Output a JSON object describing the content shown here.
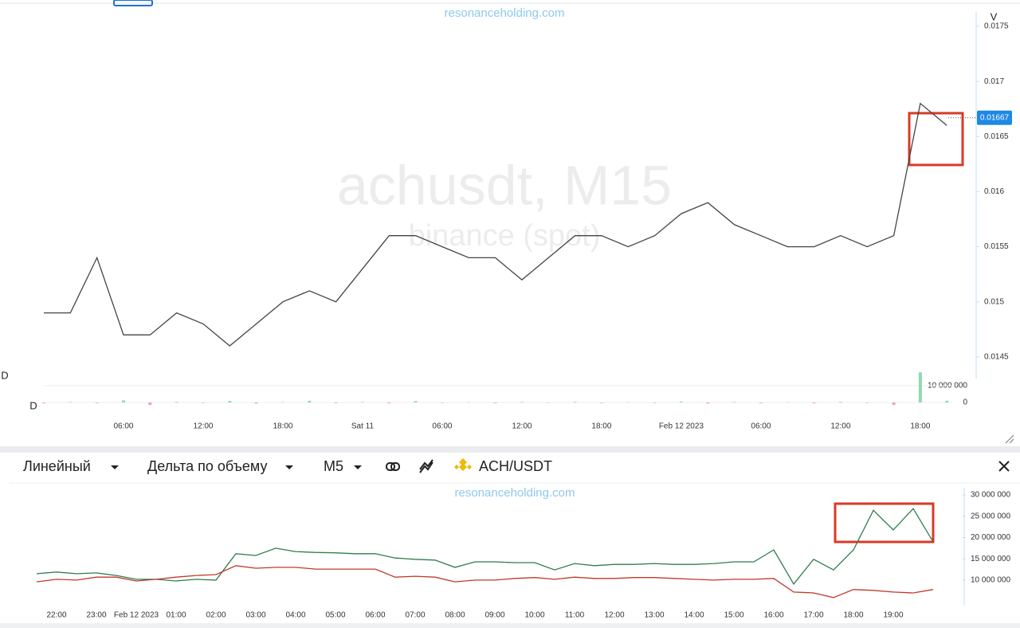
{
  "watermark": "resonanceholding.com",
  "labels": {
    "volume": "V",
    "delta": "D"
  },
  "toolbar": {
    "chart_style": "Линейный",
    "indicator": "Дельта по объему",
    "timeframe": "M5",
    "symbol": "ACH/USDT"
  },
  "chart_data": [
    {
      "type": "line",
      "title": "achusdt, M15",
      "subtitle": "binance (spot)",
      "color": "#444444",
      "categories": [
        null,
        null,
        null,
        "06:00",
        null,
        null,
        "12:00",
        null,
        null,
        "18:00",
        null,
        null,
        "Sat 11",
        null,
        null,
        "06:00",
        null,
        null,
        "12:00",
        null,
        null,
        "18:00",
        null,
        null,
        "Feb 12 2023",
        null,
        null,
        "06:00",
        null,
        null,
        "12:00",
        null,
        null,
        "18:00",
        null
      ],
      "values": [
        0.0149,
        0.0149,
        0.0154,
        0.0147,
        0.0147,
        0.0149,
        0.0148,
        0.0146,
        0.0148,
        0.015,
        0.0151,
        0.015,
        0.0153,
        0.0156,
        0.0156,
        0.0155,
        0.0154,
        0.0154,
        0.0152,
        0.0154,
        0.0156,
        0.0156,
        0.0155,
        0.0156,
        0.0158,
        0.0159,
        0.0157,
        0.0156,
        0.0155,
        0.0155,
        0.0156,
        0.0155,
        0.0156,
        0.0168,
        0.0166
      ],
      "ylim": [
        0.01434,
        0.01763
      ],
      "yticks": [
        0.0145,
        0.015,
        0.0155,
        0.016,
        0.0165,
        0.017,
        0.0175
      ],
      "last_price": 0.01667,
      "last_price_color": "#1e88e5"
    },
    {
      "type": "bar",
      "positive_color": "#8fd9b0",
      "negative_color": "#f4a4a8",
      "values": [
        -500000,
        300000,
        -400000,
        1200000,
        -1500000,
        400000,
        -300000,
        900000,
        -600000,
        200000,
        1000000,
        -400000,
        300000,
        -500000,
        800000,
        -300000,
        200000,
        -400000,
        300000,
        -200000,
        400000,
        -300000,
        200000,
        -300000,
        500000,
        -600000,
        300000,
        -400000,
        200000,
        -500000,
        400000,
        -300000,
        -1500000,
        18000000,
        1000000
      ],
      "ylim": [
        -6200000,
        20500000
      ],
      "yticks": [
        0,
        {
          "value": 10000000,
          "label": "10 000 000"
        }
      ]
    },
    {
      "type": "line",
      "categories": [
        null,
        "22:00",
        null,
        "23:00",
        null,
        "Feb 12 2023",
        null,
        "01:00",
        null,
        "02:00",
        null,
        "03:00",
        null,
        "04:00",
        null,
        "05:00",
        null,
        "06:00",
        null,
        "07:00",
        null,
        "08:00",
        null,
        "09:00",
        null,
        "10:00",
        null,
        "11:00",
        null,
        "12:00",
        null,
        "13:00",
        null,
        "14:00",
        null,
        "15:00",
        null,
        "16:00",
        null,
        "17:00",
        null,
        "18:00",
        null,
        "19:00",
        null,
        null
      ],
      "series": [
        {
          "color": "#2e7d4f",
          "values": [
            11500000,
            11900000,
            11500000,
            11700000,
            11100000,
            10200000,
            10200000,
            9800000,
            10200000,
            10000000,
            16200000,
            15800000,
            17500000,
            16700000,
            16500000,
            16400000,
            16200000,
            16200000,
            15200000,
            14900000,
            14700000,
            13000000,
            14300000,
            14300000,
            14100000,
            14100000,
            12400000,
            13900000,
            13400000,
            13700000,
            13700000,
            13900000,
            13700000,
            13700000,
            13900000,
            14300000,
            14300000,
            17100000,
            9100000,
            14900000,
            12400000,
            17100000,
            26400000,
            21800000,
            26800000,
            19000000
          ]
        },
        {
          "color": "#c0392b",
          "values": [
            9600000,
            10200000,
            10000000,
            10700000,
            10700000,
            9800000,
            10200000,
            10700000,
            11100000,
            11300000,
            13400000,
            12800000,
            13000000,
            13000000,
            12600000,
            12600000,
            12600000,
            12600000,
            10700000,
            10900000,
            10700000,
            9600000,
            10000000,
            10000000,
            10400000,
            10600000,
            10200000,
            10700000,
            10400000,
            10400000,
            10600000,
            10600000,
            10400000,
            10200000,
            10000000,
            10200000,
            10200000,
            10400000,
            7200000,
            7000000,
            5900000,
            7800000,
            7600000,
            7200000,
            7000000,
            7800000
          ]
        }
      ],
      "ylim": [
        4000000,
        31700000
      ],
      "yticks": [
        {
          "value": 10000000,
          "label": "10 000 000"
        },
        {
          "value": 15000000,
          "label": "15 000 000"
        },
        {
          "value": 20000000,
          "label": "20 000 000"
        },
        {
          "value": 25000000,
          "label": "25 000 000"
        },
        {
          "value": 30000000,
          "label": "30 000 000"
        }
      ]
    }
  ]
}
